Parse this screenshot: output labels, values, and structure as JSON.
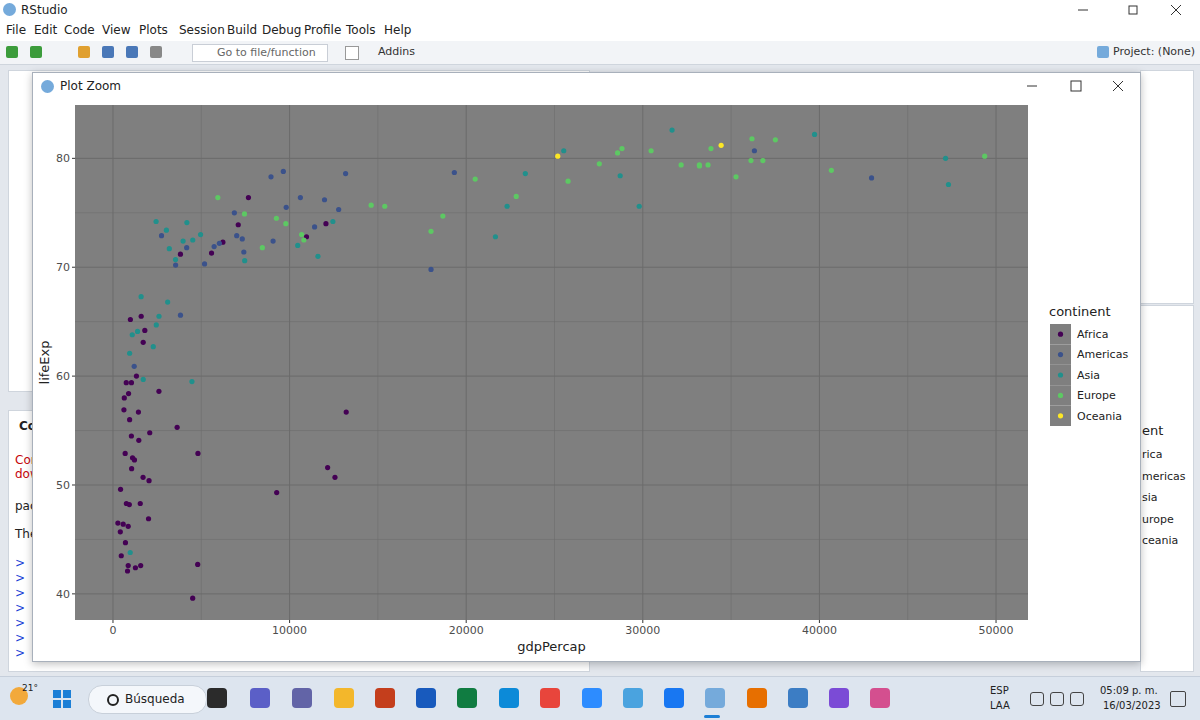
{
  "app": {
    "title": "RStudio",
    "menu": [
      "File",
      "Edit",
      "Code",
      "View",
      "Plots",
      "Session",
      "Build",
      "Debug",
      "Profile",
      "Tools",
      "Help"
    ],
    "toolbar": [
      "Go to file/function",
      "Addins"
    ],
    "project": "Project: (None)"
  },
  "plot_window": {
    "title": "Plot Zoom"
  },
  "console_fragments": [
    "Co",
    "Cor",
    "dow",
    "pac",
    "The"
  ],
  "prompt": ">",
  "legend_fragments": [
    "ent",
    "rica",
    "mericas",
    "sia",
    "urope",
    "ceania"
  ],
  "taskbar": {
    "temperature": "21°",
    "search": "Búsqueda",
    "language": [
      "ESP",
      "LAA"
    ],
    "time": "05:09 p. m.",
    "date": "16/03/2023"
  },
  "chart_data": {
    "type": "scatter",
    "x_label": "gdpPercap",
    "y_label": "lifeExp",
    "legend_title": "continent",
    "legend": "right",
    "grid": true,
    "marker": "circle",
    "xlim": [
      -2150,
      51810
    ],
    "ylim": [
      37.6,
      84.9
    ],
    "xticks": [
      0,
      10000,
      20000,
      30000,
      40000,
      50000
    ],
    "yticks": [
      40,
      50,
      60,
      70,
      80
    ],
    "series": [
      {
        "name": "Africa",
        "color": "#440154",
        "x": [
          6223,
          4797,
          1441,
          12570,
          1217,
          430,
          2042,
          706,
          1704,
          986,
          278,
          3633,
          1545,
          2082,
          5581,
          12154,
          641,
          691,
          13206,
          753,
          1328,
          943,
          579,
          1463,
          1569,
          415,
          12058,
          1045,
          759,
          1043,
          1803,
          10957,
          3820,
          824,
          4811,
          620,
          2014,
          7670,
          863,
          1598,
          1712,
          863,
          926,
          9270,
          2602,
          4513,
          1107,
          883,
          7093,
          1056,
          1271,
          470
        ],
        "values": [
          72.3,
          42.7,
          56.7,
          50.7,
          52.3,
          49.6,
          50.4,
          44.7,
          50.7,
          65.2,
          46.5,
          55.3,
          48.3,
          54.8,
          71.3,
          51.6,
          58.0,
          52.9,
          56.7,
          59.4,
          60.0,
          56.0,
          46.4,
          54.1,
          42.6,
          45.7,
          74.0,
          59.4,
          48.3,
          54.5,
          64.2,
          72.8,
          71.2,
          42.1,
          52.9,
          56.9,
          46.9,
          76.4,
          46.2,
          65.5,
          63.1,
          42.6,
          48.2,
          49.3,
          58.6,
          39.6,
          52.5,
          58.4,
          73.9,
          51.5,
          42.4,
          43.5
        ]
      },
      {
        "name": "Americas",
        "color": "#3B528B",
        "x": [
          12779,
          3822,
          9066,
          36319,
          13172,
          7007,
          9645,
          8948,
          6025,
          6873,
          5728,
          5186,
          1202,
          3548,
          7321,
          11978,
          2749,
          9809,
          4173,
          7409,
          19329,
          18009,
          42952,
          10611,
          11416
        ],
        "values": [
          75.3,
          65.6,
          72.4,
          80.7,
          78.6,
          72.9,
          78.8,
          78.3,
          72.2,
          75.0,
          71.9,
          70.3,
          60.9,
          70.2,
          72.6,
          76.2,
          72.9,
          75.5,
          71.8,
          71.4,
          78.7,
          69.8,
          78.2,
          76.4,
          73.7
        ]
      },
      {
        "name": "Asia",
        "color": "#21908C",
        "x": [
          975,
          29796,
          1391,
          1714,
          4959,
          39725,
          2452,
          3541,
          11606,
          4471,
          25523,
          31656,
          4519,
          1593,
          23348,
          47307,
          10461,
          12452,
          3096,
          944,
          1091,
          22316,
          2606,
          3190,
          21655,
          47143,
          3970,
          4185,
          28718,
          7458,
          2442,
          3025,
          2281
        ],
        "values": [
          43.8,
          75.6,
          64.1,
          59.7,
          73.0,
          82.2,
          64.7,
          70.7,
          71.0,
          59.5,
          80.7,
          82.6,
          72.5,
          67.3,
          78.6,
          77.6,
          72.0,
          74.2,
          66.8,
          62.1,
          63.8,
          75.6,
          65.5,
          71.7,
          72.8,
          80.0,
          72.4,
          74.1,
          78.4,
          70.6,
          74.2,
          73.4,
          62.7
        ]
      },
      {
        "name": "Europe",
        "color": "#5DC863",
        "x": [
          5937,
          36126,
          33693,
          7446,
          10681,
          14619,
          22833,
          35278,
          33207,
          30470,
          32170,
          27538,
          18009,
          36181,
          40676,
          28570,
          9254,
          36798,
          49357,
          15390,
          20510,
          10808,
          9787,
          18678,
          25768,
          28821,
          33860,
          37506,
          8458,
          33203
        ],
        "values": [
          76.4,
          79.8,
          79.4,
          74.9,
          73.0,
          75.7,
          76.5,
          78.3,
          79.3,
          80.7,
          79.4,
          79.5,
          73.3,
          81.8,
          78.9,
          80.5,
          74.5,
          79.8,
          80.2,
          75.6,
          78.1,
          72.5,
          74.0,
          74.7,
          77.9,
          80.9,
          80.9,
          81.7,
          71.8,
          79.4
        ]
      },
      {
        "name": "Oceania",
        "color": "#FDE725",
        "x": [
          34435,
          25185
        ],
        "values": [
          81.2,
          80.2
        ]
      }
    ]
  }
}
